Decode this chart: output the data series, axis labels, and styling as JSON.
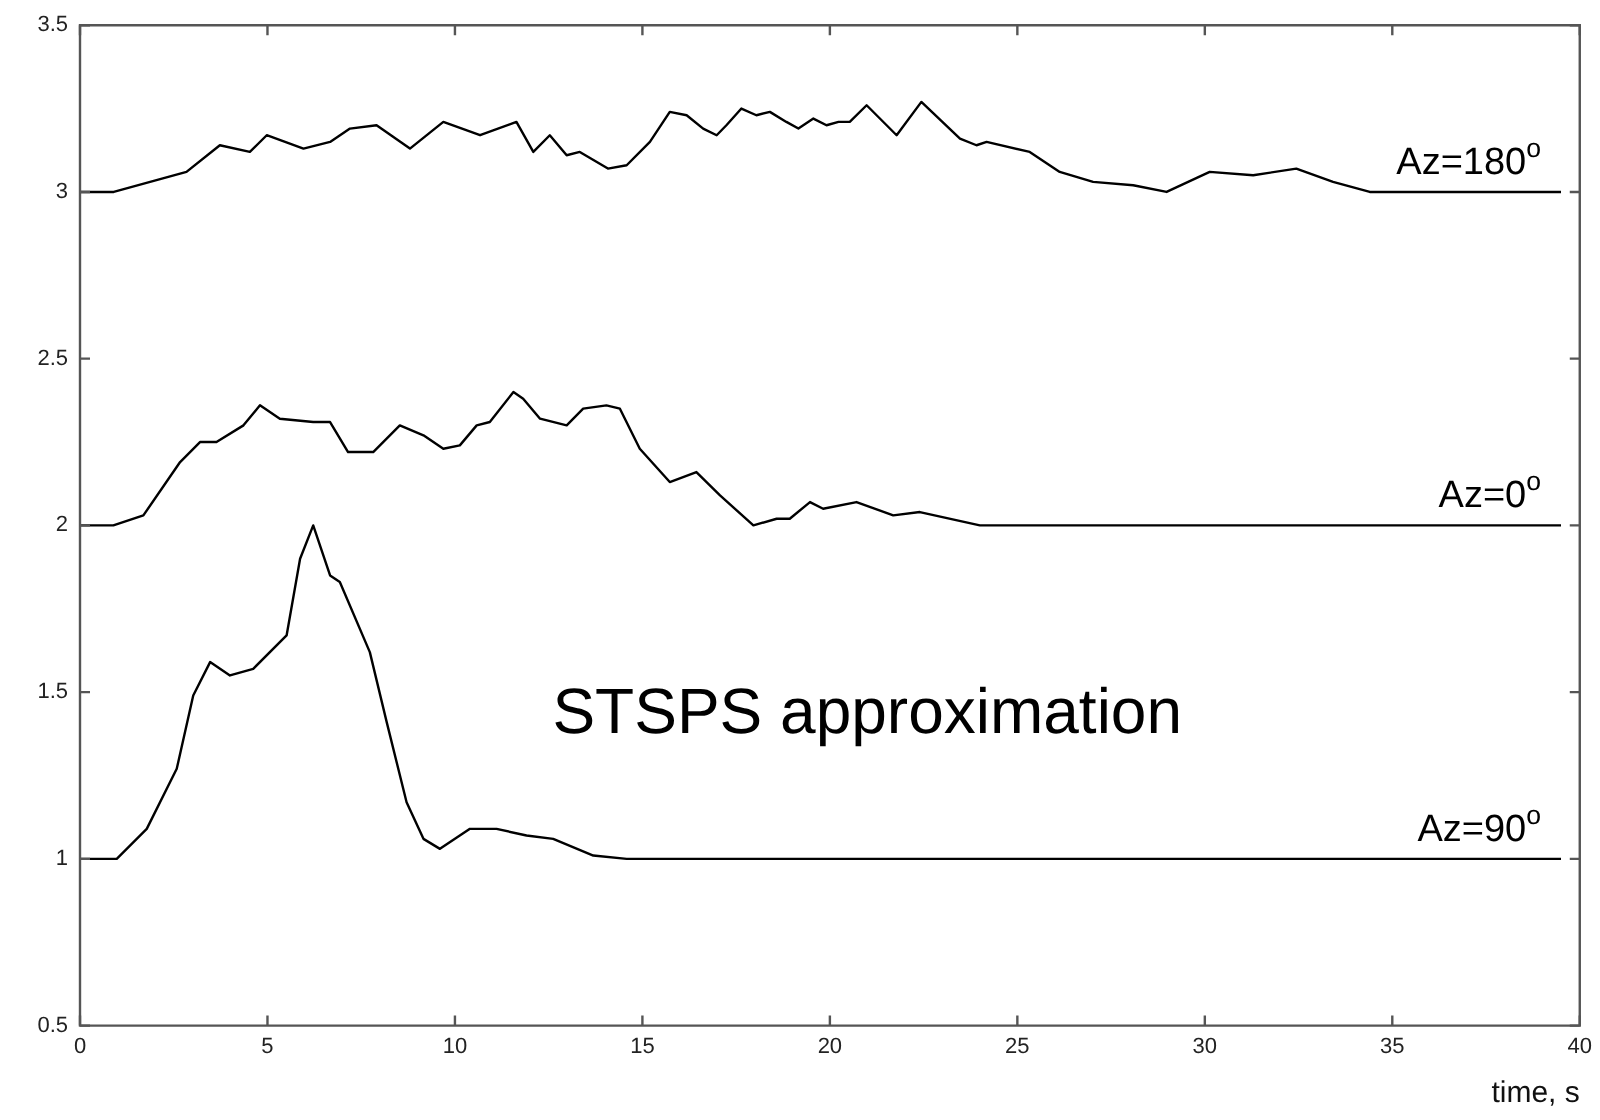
{
  "chart_data": {
    "type": "line",
    "xlabel": "time, s",
    "xlim": [
      0,
      40
    ],
    "xticks": [
      0,
      5,
      10,
      15,
      20,
      25,
      30,
      35,
      40
    ],
    "ylim": [
      0.5,
      3.5
    ],
    "yticks": [
      0.5,
      1,
      1.5,
      2,
      2.5,
      3,
      3.5
    ],
    "grid": false,
    "legend": false,
    "marker": "none",
    "line_style": "solid",
    "annotations": [
      "STSPS approximation"
    ],
    "series": [
      {
        "name": "Az=180$^{o}$",
        "color": "#000000",
        "x": [
          0,
          0.9,
          2.84,
          3.73,
          4.53,
          4.98,
          5.96,
          6.67,
          7.2,
          7.91,
          8.8,
          9.69,
          10.67,
          11.64,
          12.09,
          12.53,
          12.98,
          13.33,
          14.08,
          14.58,
          15.2,
          15.73,
          16.18,
          16.62,
          16.98,
          17.24,
          17.64,
          18.04,
          18.4,
          18.84,
          19.16,
          19.56,
          19.91,
          20.23,
          20.53,
          20.98,
          21.78,
          22.44,
          23.47,
          23.91,
          24.18,
          25.33,
          26.13,
          27.02,
          28.09,
          28.98,
          30.13,
          31.29,
          32.44,
          33.42,
          34.4,
          39.5
        ],
        "values": [
          3,
          3,
          3.06,
          3.14,
          3.12,
          3.17,
          3.13,
          3.15,
          3.19,
          3.2,
          3.13,
          3.21,
          3.17,
          3.21,
          3.12,
          3.17,
          3.11,
          3.12,
          3.07,
          3.08,
          3.15,
          3.24,
          3.23,
          3.19,
          3.17,
          3.2,
          3.25,
          3.23,
          3.24,
          3.21,
          3.19,
          3.22,
          3.2,
          3.21,
          3.21,
          3.26,
          3.17,
          3.27,
          3.16,
          3.14,
          3.15,
          3.12,
          3.06,
          3.03,
          3.02,
          3,
          3.06,
          3.05,
          3.07,
          3.03,
          3,
          3
        ]
      },
      {
        "name": "Az=0$^{o}$",
        "color": "#000000",
        "x": [
          0,
          0.89,
          1.69,
          2.67,
          3.2,
          3.64,
          4.36,
          4.8,
          5.33,
          6.22,
          6.67,
          7.15,
          7.82,
          8.53,
          9.16,
          9.69,
          10.13,
          10.58,
          10.93,
          11.56,
          11.82,
          12.27,
          12.98,
          13.42,
          14.04,
          14.4,
          14.93,
          15.73,
          16.44,
          17.07,
          17.96,
          18.58,
          18.93,
          19.47,
          19.82,
          20.71,
          21.69,
          22.4,
          24,
          39.5
        ],
        "values": [
          2,
          2,
          2.03,
          2.19,
          2.25,
          2.25,
          2.3,
          2.36,
          2.32,
          2.31,
          2.31,
          2.22,
          2.22,
          2.3,
          2.27,
          2.23,
          2.24,
          2.3,
          2.31,
          2.4,
          2.38,
          2.32,
          2.3,
          2.35,
          2.36,
          2.35,
          2.23,
          2.13,
          2.16,
          2.09,
          2,
          2.02,
          2.02,
          2.07,
          2.05,
          2.07,
          2.03,
          2.04,
          2,
          2
        ]
      },
      {
        "name": "Az=90$^{o}$",
        "color": "#000000",
        "x": [
          0,
          0.98,
          1.78,
          2.58,
          3.02,
          3.47,
          4,
          4.62,
          5.51,
          5.87,
          6.22,
          6.67,
          6.93,
          7.73,
          8.18,
          8.71,
          9.16,
          9.6,
          10.4,
          11.11,
          11.91,
          12.62,
          13.69,
          14.58,
          39.5
        ],
        "values": [
          1,
          1,
          1.09,
          1.27,
          1.49,
          1.59,
          1.55,
          1.57,
          1.67,
          1.9,
          2,
          1.85,
          1.83,
          1.62,
          1.41,
          1.17,
          1.06,
          1.03,
          1.09,
          1.09,
          1.07,
          1.06,
          1.01,
          1,
          1
        ]
      }
    ]
  }
}
